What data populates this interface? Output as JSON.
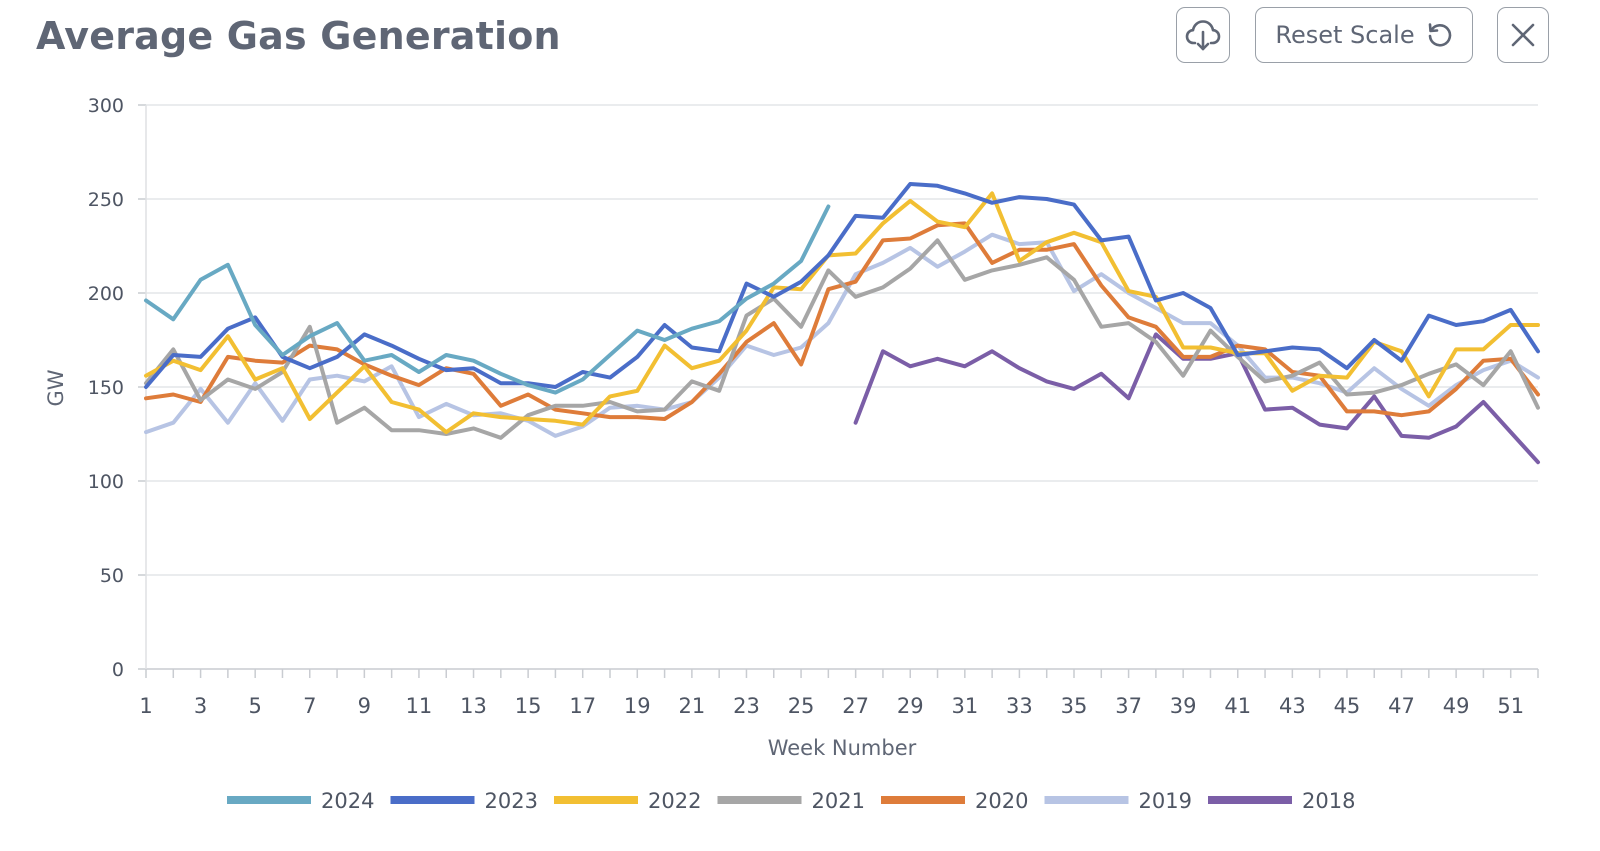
{
  "header": {
    "title": "Average Gas Generation",
    "download_icon": "cloud-download-icon",
    "reset_label": "Reset Scale",
    "reset_icon": "rotate-ccw-icon",
    "close_icon": "close-icon"
  },
  "chart_data": {
    "type": "line",
    "title": "Average Gas Generation",
    "xlabel": "Week Number",
    "ylabel": "GW",
    "xlim": [
      1,
      52
    ],
    "ylim": [
      0,
      300
    ],
    "yticks": [
      0,
      50,
      100,
      150,
      200,
      250,
      300
    ],
    "xticks": [
      1,
      3,
      5,
      7,
      9,
      11,
      13,
      15,
      17,
      19,
      21,
      23,
      25,
      27,
      29,
      31,
      33,
      35,
      37,
      39,
      41,
      43,
      45,
      47,
      49,
      51
    ],
    "grid": true,
    "legend_position": "bottom",
    "series": [
      {
        "name": "2018",
        "color": "#7b5ea7",
        "x_start": 27,
        "values": [
          131,
          169,
          161,
          165,
          161,
          169,
          160,
          153,
          149,
          157,
          144,
          178,
          165,
          165,
          168,
          138,
          139,
          130,
          128,
          145,
          124,
          123,
          129,
          142,
          126,
          110
        ]
      },
      {
        "name": "2019",
        "color": "#b7c4e4",
        "x_start": 1,
        "values": [
          126,
          131,
          149,
          131,
          152,
          132,
          154,
          156,
          153,
          161,
          134,
          141,
          135,
          136,
          132,
          124,
          129,
          139,
          140,
          138,
          142,
          155,
          172,
          167,
          171,
          184,
          210,
          216,
          224,
          214,
          222,
          231,
          226,
          227,
          201,
          210,
          200,
          192,
          184,
          184,
          172,
          155,
          155,
          152,
          147,
          160,
          149,
          140,
          151,
          159,
          164,
          155
        ]
      },
      {
        "name": "2020",
        "color": "#de7c3a",
        "x_start": 1,
        "values": [
          144,
          146,
          142,
          166,
          164,
          163,
          172,
          170,
          162,
          156,
          151,
          160,
          157,
          140,
          146,
          138,
          136,
          134,
          134,
          133,
          142,
          157,
          174,
          184,
          162,
          202,
          206,
          228,
          229,
          236,
          237,
          216,
          223,
          223,
          226,
          204,
          187,
          182,
          166,
          166,
          172,
          170,
          158,
          156,
          137,
          137,
          135,
          137,
          149,
          164,
          165,
          146
        ]
      },
      {
        "name": "2021",
        "color": "#a6a6a6",
        "x_start": 1,
        "values": [
          152,
          170,
          143,
          154,
          149,
          158,
          182,
          131,
          139,
          127,
          127,
          125,
          128,
          123,
          135,
          140,
          140,
          142,
          137,
          138,
          153,
          148,
          188,
          197,
          182,
          212,
          198,
          203,
          213,
          228,
          207,
          212,
          215,
          219,
          207,
          182,
          184,
          174,
          156,
          180,
          166,
          153,
          156,
          163,
          146,
          147,
          151,
          157,
          162,
          151,
          169,
          139
        ]
      },
      {
        "name": "2022",
        "color": "#f2bf32",
        "x_start": 1,
        "values": [
          156,
          164,
          159,
          177,
          154,
          160,
          133,
          147,
          161,
          142,
          138,
          126,
          136,
          134,
          133,
          132,
          130,
          145,
          148,
          172,
          160,
          164,
          180,
          203,
          202,
          220,
          221,
          237,
          249,
          238,
          235,
          253,
          217,
          227,
          232,
          227,
          201,
          198,
          171,
          171,
          168,
          168,
          148,
          156,
          155,
          174,
          169,
          145,
          170,
          170,
          183,
          183
        ]
      },
      {
        "name": "2023",
        "color": "#4a6dc8",
        "x_start": 1,
        "values": [
          150,
          167,
          166,
          181,
          187,
          166,
          160,
          166,
          178,
          172,
          165,
          159,
          160,
          152,
          152,
          150,
          158,
          155,
          166,
          183,
          171,
          169,
          205,
          198,
          206,
          220,
          241,
          240,
          258,
          257,
          253,
          248,
          251,
          250,
          247,
          228,
          230,
          196,
          200,
          192,
          167,
          169,
          171,
          170,
          160,
          175,
          164,
          188,
          183,
          185,
          191,
          169
        ]
      },
      {
        "name": "2024",
        "color": "#68a9c3",
        "x_start": 1,
        "values": [
          196,
          186,
          207,
          215,
          183,
          167,
          177,
          184,
          164,
          167,
          158,
          167,
          164,
          157,
          151,
          147,
          154,
          167,
          180,
          175,
          181,
          185,
          197,
          205,
          217,
          246
        ]
      }
    ],
    "legend_order": [
      "2024",
      "2023",
      "2022",
      "2021",
      "2020",
      "2019",
      "2018"
    ]
  }
}
